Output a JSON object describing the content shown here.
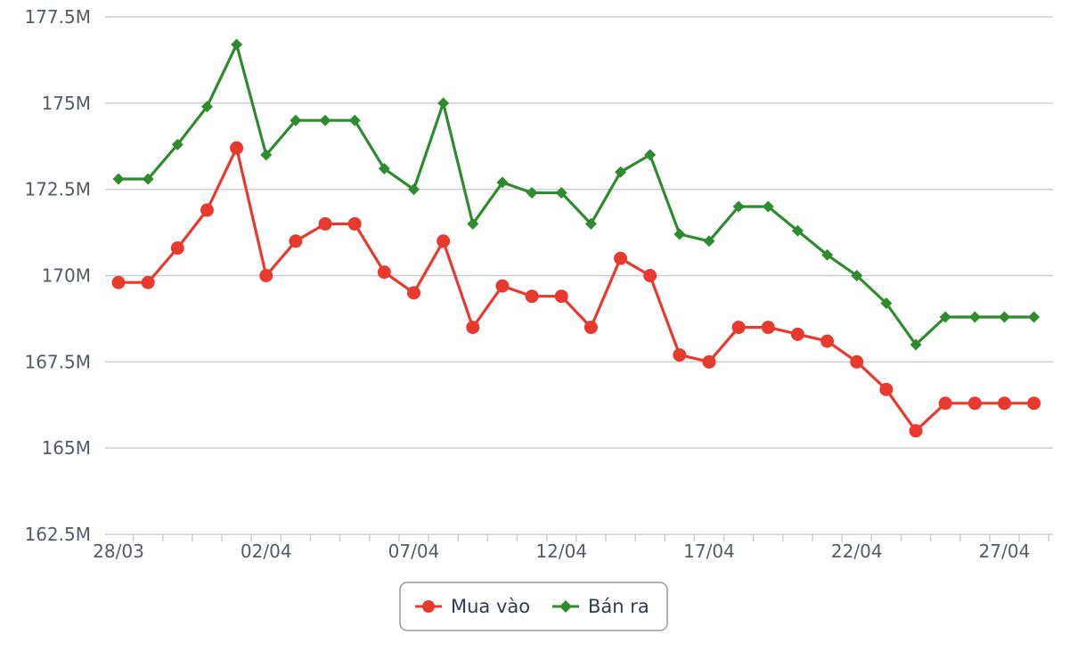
{
  "chart_data": {
    "type": "line",
    "title": "",
    "xlabel": "",
    "ylabel": "",
    "ylim": [
      162.5,
      177.5
    ],
    "y_unit_suffix": "M",
    "y_ticks": [
      "162.5M",
      "165M",
      "167.5M",
      "170M",
      "172.5M",
      "175M",
      "177.5M"
    ],
    "y_tick_values": [
      162.5,
      165,
      167.5,
      170,
      172.5,
      175,
      177.5
    ],
    "x_tick_labels": [
      "28/03",
      "02/04",
      "07/04",
      "12/04",
      "17/04",
      "22/04",
      "27/04"
    ],
    "x_tick_indices": [
      0,
      5,
      10,
      15,
      20,
      25,
      30
    ],
    "grid": true,
    "legend_position": "bottom-center",
    "series": [
      {
        "name": "Mua vào",
        "color": "#e8392f",
        "marker": "circle",
        "values": [
          169.8,
          169.8,
          170.8,
          171.9,
          173.7,
          170.0,
          171.0,
          171.5,
          171.5,
          170.1,
          169.5,
          171.0,
          168.5,
          169.7,
          169.4,
          169.4,
          168.5,
          170.5,
          170.0,
          167.7,
          167.5,
          168.5,
          168.5,
          168.3,
          168.1,
          167.5,
          166.7,
          165.5,
          166.3,
          166.3,
          166.3,
          166.3
        ]
      },
      {
        "name": "Bán ra",
        "color": "#2e8b2e",
        "marker": "diamond",
        "values": [
          172.8,
          172.8,
          173.8,
          174.9,
          176.7,
          173.5,
          174.5,
          174.5,
          174.5,
          173.1,
          172.5,
          175.0,
          171.5,
          172.7,
          172.4,
          172.4,
          171.5,
          173.0,
          173.5,
          171.2,
          171.0,
          172.0,
          172.0,
          171.3,
          170.6,
          170.0,
          169.2,
          168.0,
          168.8,
          168.8,
          168.8,
          168.8
        ]
      }
    ]
  }
}
